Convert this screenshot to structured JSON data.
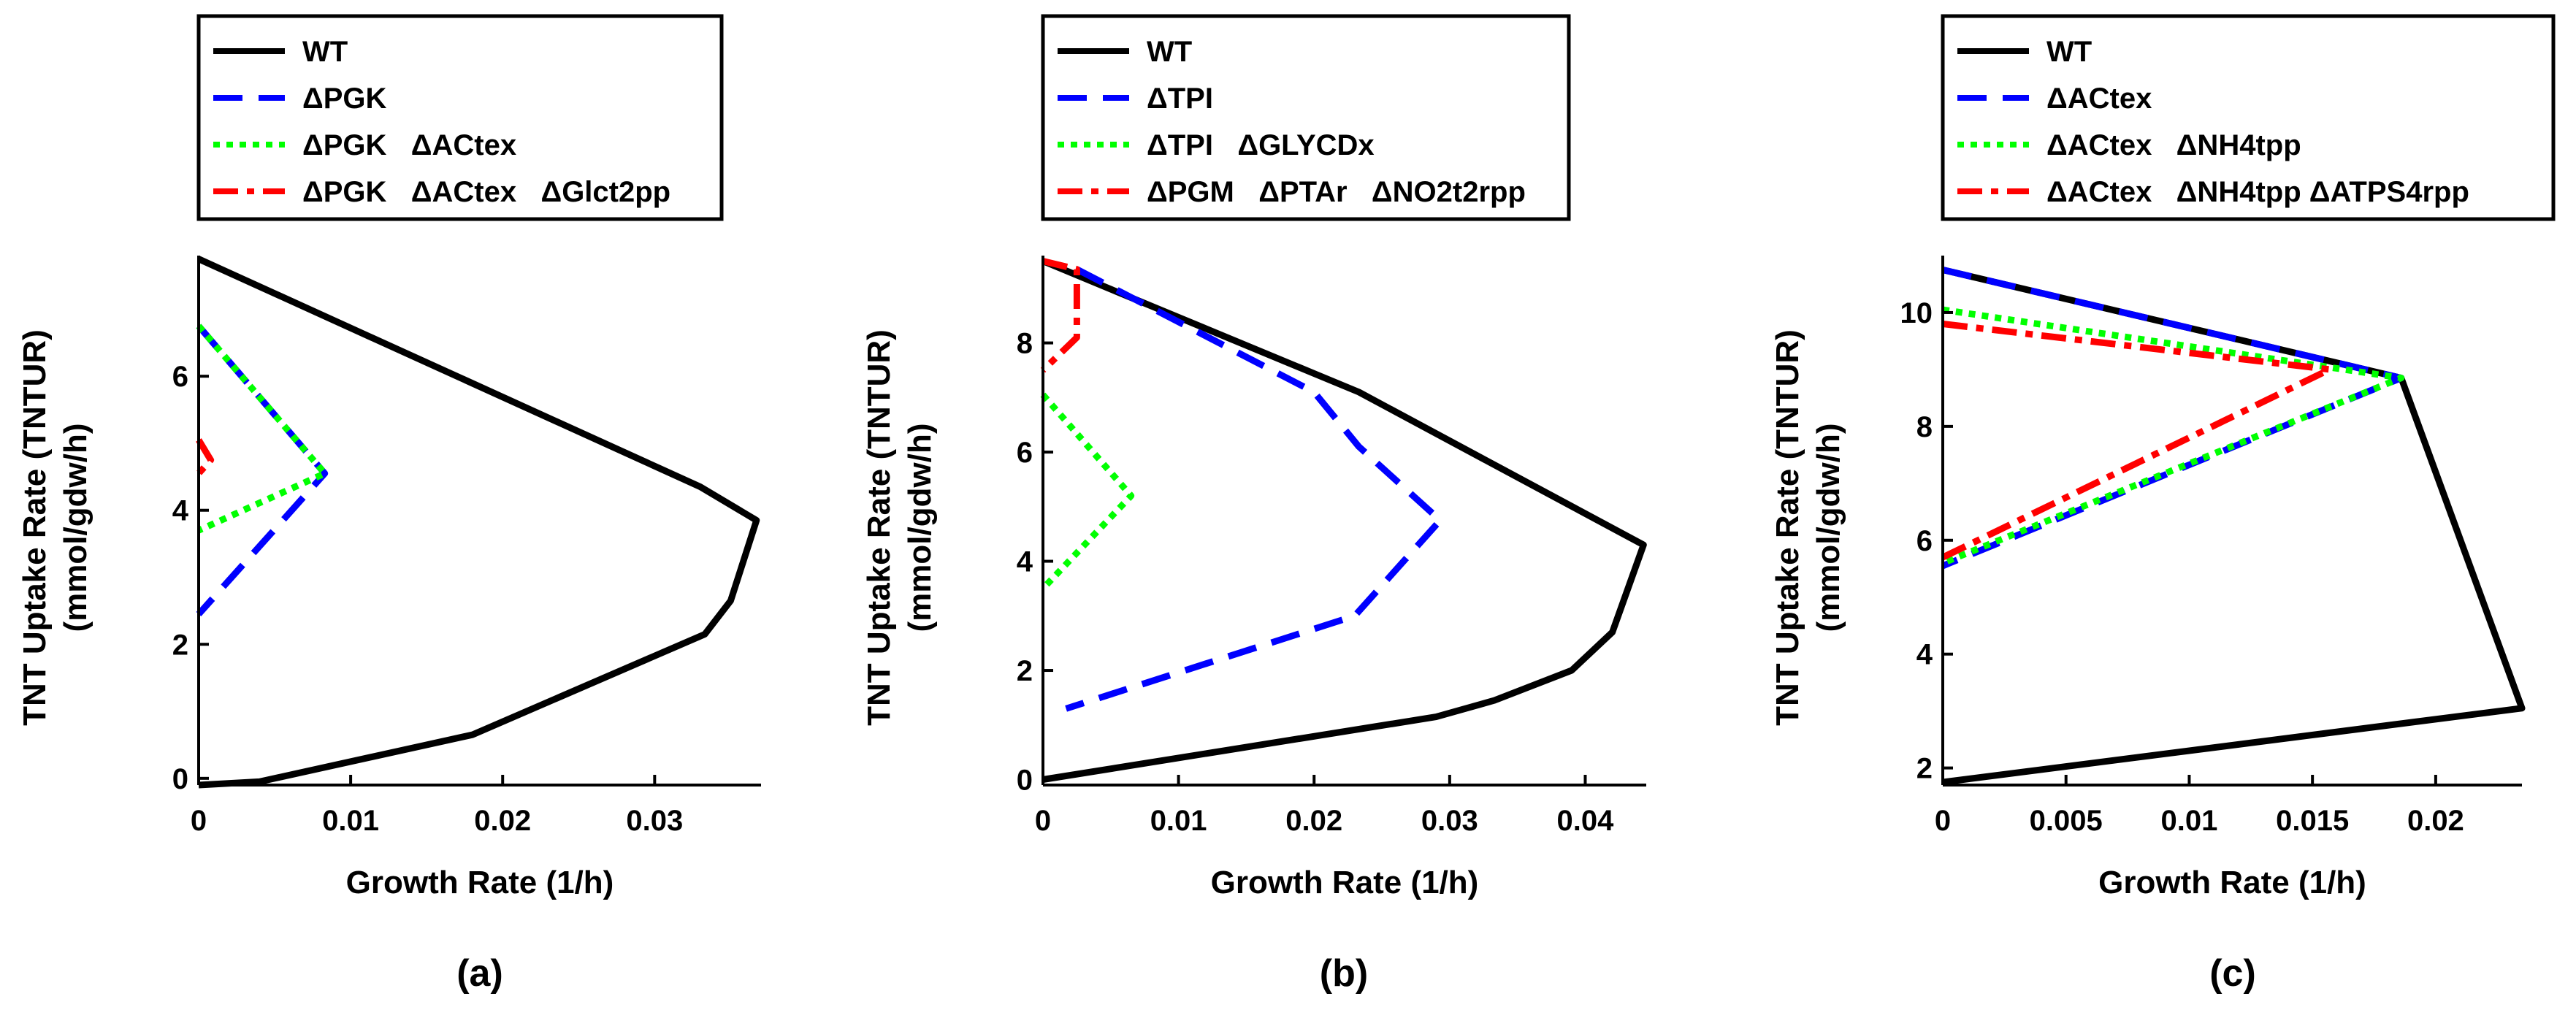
{
  "chart_data": [
    {
      "type": "line",
      "panel_label": "(a)",
      "xlabel": "Growth Rate (1/h)",
      "ylabel_line1": "TNT Uptake Rate (TNTUR)",
      "ylabel_line2": "(mmol/gdw/h)",
      "xlim": [
        0,
        0.037
      ],
      "ylim": [
        -0.1,
        7.8
      ],
      "xticks": [
        0,
        0.01,
        0.02,
        0.03
      ],
      "xtick_labels": [
        "0",
        "0.01",
        "0.02",
        "0.03"
      ],
      "yticks": [
        0,
        2,
        4,
        6
      ],
      "ytick_labels": [
        "0",
        "2",
        "4",
        "6"
      ],
      "series": [
        {
          "name": "WT",
          "style": "solid",
          "color": "#000000",
          "points": [
            [
              0,
              7.75
            ],
            [
              0.033,
              4.35
            ],
            [
              0.0367,
              3.85
            ],
            [
              0.035,
              2.65
            ],
            [
              0.0333,
              2.15
            ],
            [
              0.018,
              0.65
            ],
            [
              0.004,
              -0.05
            ],
            [
              0,
              -0.1
            ]
          ]
        },
        {
          "name": "ΔPGK",
          "style": "dashed",
          "color": "#0000ff",
          "points": [
            [
              0,
              6.75
            ],
            [
              0.0083,
              4.55
            ],
            [
              0,
              2.45
            ]
          ]
        },
        {
          "name": "ΔPGK   ΔACtex",
          "style": "dotted",
          "color": "#00ff00",
          "points": [
            [
              0,
              6.75
            ],
            [
              0.0083,
              4.55
            ],
            [
              0,
              3.7
            ]
          ]
        },
        {
          "name": "ΔPGK   ΔACtex   ΔGlct2pp",
          "style": "dashdot",
          "color": "#ff0000",
          "points": [
            [
              0,
              5.05
            ],
            [
              0.0008,
              4.75
            ],
            [
              0,
              4.55
            ]
          ]
        }
      ]
    },
    {
      "type": "line",
      "panel_label": "(b)",
      "xlabel": "Growth Rate (1/h)",
      "ylabel_line1": "TNT Uptake Rate (TNTUR)",
      "ylabel_line2": "(mmol/gdw/h)",
      "xlim": [
        0,
        0.0445
      ],
      "ylim": [
        -0.1,
        9.6
      ],
      "xticks": [
        0,
        0.01,
        0.02,
        0.03,
        0.04
      ],
      "xtick_labels": [
        "0",
        "0.01",
        "0.02",
        "0.03",
        "0.04"
      ],
      "yticks": [
        0,
        2,
        4,
        6,
        8
      ],
      "ytick_labels": [
        "0",
        "2",
        "4",
        "6",
        "8"
      ],
      "series": [
        {
          "name": "WT",
          "style": "solid",
          "color": "#000000",
          "points": [
            [
              0,
              9.5
            ],
            [
              0.0233,
              7.1
            ],
            [
              0.0443,
              4.3
            ],
            [
              0.042,
              2.7
            ],
            [
              0.039,
              2.0
            ],
            [
              0.0333,
              1.45
            ],
            [
              0.029,
              1.15
            ],
            [
              0,
              0
            ]
          ]
        },
        {
          "name": "ΔTPI",
          "style": "dashed",
          "color": "#0000ff",
          "points": [
            [
              0.0025,
              9.35
            ],
            [
              0.02,
              7.1
            ],
            [
              0.0233,
              6.1
            ],
            [
              0.0293,
              4.75
            ],
            [
              0.023,
              3.0
            ],
            [
              0.0017,
              1.3
            ]
          ]
        },
        {
          "name": "ΔTPI   ΔGLYCDx",
          "style": "dotted",
          "color": "#00ff00",
          "points": [
            [
              0,
              7.05
            ],
            [
              0.0065,
              5.2
            ],
            [
              0,
              3.5
            ]
          ]
        },
        {
          "name": "ΔPGM   ΔPTAr   ΔNO2t2rpp",
          "style": "dashdot",
          "color": "#ff0000",
          "points": [
            [
              0,
              9.5
            ],
            [
              0.0025,
              9.35
            ],
            [
              0.0025,
              8.1
            ],
            [
              0,
              7.5
            ]
          ]
        }
      ]
    },
    {
      "type": "line",
      "panel_label": "(c)",
      "xlabel": "Growth Rate (1/h)",
      "ylabel_line1": "TNT Uptake Rate (TNTUR)",
      "ylabel_line2": "(mmol/gdw/h)",
      "xlim": [
        0,
        0.0235
      ],
      "ylim": [
        1.7,
        11
      ],
      "xticks": [
        0,
        0.005,
        0.01,
        0.015,
        0.02
      ],
      "xtick_labels": [
        "0",
        "0.005",
        "0.01",
        "0.015",
        "0.02"
      ],
      "yticks": [
        2,
        4,
        6,
        8,
        10
      ],
      "ytick_labels": [
        "2",
        "4",
        "6",
        "8",
        "10"
      ],
      "series": [
        {
          "name": "WT",
          "style": "solid",
          "color": "#000000",
          "points": [
            [
              0,
              10.75
            ],
            [
              0.0186,
              8.85
            ],
            [
              0.0235,
              3.05
            ],
            [
              0,
              1.75
            ]
          ]
        },
        {
          "name": "ΔACtex",
          "style": "dashed",
          "color": "#0000ff",
          "points": [
            [
              0,
              10.75
            ],
            [
              0.0186,
              8.85
            ],
            [
              0,
              5.55
            ]
          ]
        },
        {
          "name": "ΔACtex   ΔNH4tpp",
          "style": "dotted",
          "color": "#00ff00",
          "points": [
            [
              0,
              10.05
            ],
            [
              0.0186,
              8.85
            ],
            [
              0,
              5.6
            ]
          ]
        },
        {
          "name": "ΔACtex   ΔNH4tpp ΔATPS4rpp",
          "style": "dashdot",
          "color": "#ff0000",
          "points": [
            [
              0,
              9.8
            ],
            [
              0.0157,
              9.0
            ],
            [
              0,
              5.7
            ]
          ]
        }
      ]
    }
  ]
}
